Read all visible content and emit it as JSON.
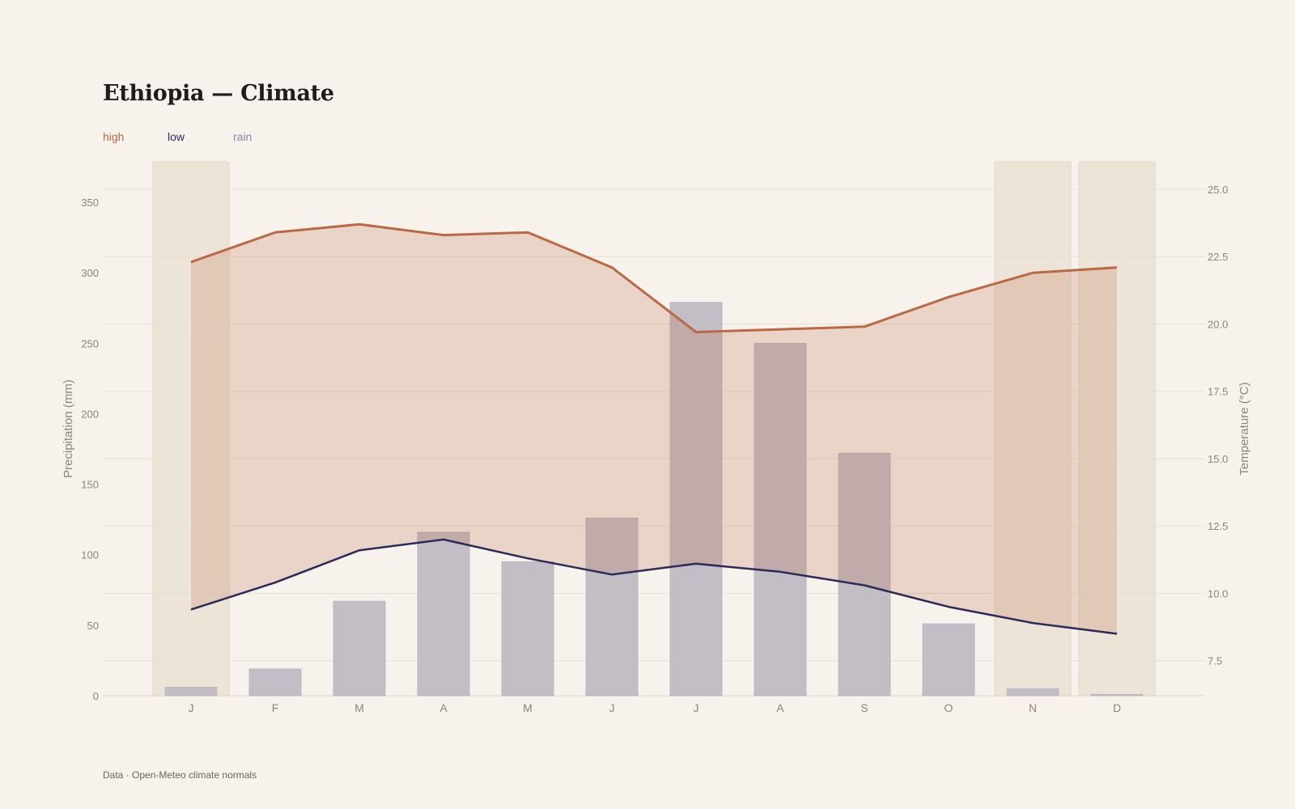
{
  "title": "Ethiopia — Climate",
  "footer": "Data · Open-Meteo climate normals",
  "colors": {
    "background": "#f7f2ec",
    "high": "#bb6844",
    "low": "#2c2a5a",
    "rain": "#8a84a8",
    "rain_bar": "#c3bec6",
    "band_fill": "#e9d6ca",
    "dry_season": "#ede4d8"
  },
  "legend": [
    {
      "label": "high",
      "color": "#bb6844"
    },
    {
      "label": "low",
      "color": "#2c2a5a"
    },
    {
      "label": "rain",
      "color": "#8a84a8"
    }
  ],
  "chart_data": {
    "type": "bar+line",
    "categories": [
      "J",
      "F",
      "M",
      "A",
      "M",
      "J",
      "J",
      "A",
      "S",
      "O",
      "N",
      "D"
    ],
    "highlighted_categories": [
      0,
      10,
      11
    ],
    "series": [
      {
        "name": "rain",
        "axis": "left",
        "kind": "bar",
        "values": [
          6,
          19,
          67,
          116,
          95,
          126,
          279,
          250,
          172,
          51,
          5,
          1
        ]
      },
      {
        "name": "high",
        "axis": "right",
        "kind": "line",
        "values": [
          22.3,
          23.4,
          23.7,
          23.3,
          23.4,
          22.1,
          19.7,
          19.8,
          19.9,
          21.0,
          21.9,
          22.1
        ]
      },
      {
        "name": "low",
        "axis": "right",
        "kind": "line",
        "values": [
          9.4,
          10.4,
          11.6,
          12.0,
          11.3,
          10.7,
          11.1,
          10.8,
          10.3,
          9.5,
          8.9,
          8.5
        ]
      }
    ],
    "band": {
      "between": [
        "low",
        "high"
      ]
    },
    "ylabel": "Precipitation (mm)",
    "y2label": "Temperature (°C)",
    "ylim": [
      0,
      350
    ],
    "y2lim": [
      6.2,
      25.0
    ],
    "yticks": [
      "0",
      "50",
      "100",
      "150",
      "200",
      "250",
      "300",
      "350"
    ],
    "y2ticks": [
      "7.5",
      "10.0",
      "12.5",
      "15.0",
      "17.5",
      "20.0",
      "22.5",
      "25.0"
    ],
    "grid": true
  }
}
